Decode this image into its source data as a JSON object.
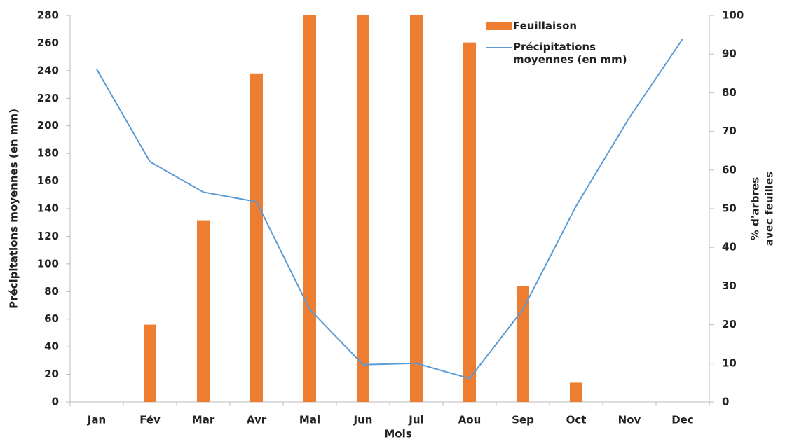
{
  "chart_data": {
    "type": "bar_line",
    "xlabel": "Mois",
    "ylabel": "Précipitations moyennes (en mm)",
    "y2label": [
      "% d'arbres",
      "avec feuilles"
    ],
    "categories": [
      "Jan",
      "Fév",
      "Mar",
      "Avr",
      "Mai",
      "Jun",
      "Jul",
      "Aou",
      "Sep",
      "Oct",
      "Nov",
      "Dec"
    ],
    "series": [
      {
        "name": "Feuillaison",
        "type": "bar",
        "axis": "y2",
        "color": "#ed7d31",
        "values": [
          0,
          20,
          47,
          85,
          100,
          100,
          100,
          93,
          30,
          5,
          0,
          0
        ]
      },
      {
        "name": "Précipitations moyennes (en mm)",
        "type": "line",
        "axis": "y",
        "color": "#5b9bd5",
        "values": [
          241,
          174,
          152,
          145,
          67,
          27,
          28,
          17,
          67,
          142,
          206,
          263
        ]
      }
    ],
    "ylim": [
      0,
      280
    ],
    "yticks": [
      0,
      20,
      40,
      60,
      80,
      100,
      120,
      140,
      160,
      180,
      200,
      220,
      240,
      260,
      280
    ],
    "y2lim": [
      0,
      100
    ],
    "y2ticks": [
      0,
      10,
      20,
      30,
      40,
      50,
      60,
      70,
      80,
      90,
      100
    ],
    "legend": "upper right",
    "grid": false
  }
}
